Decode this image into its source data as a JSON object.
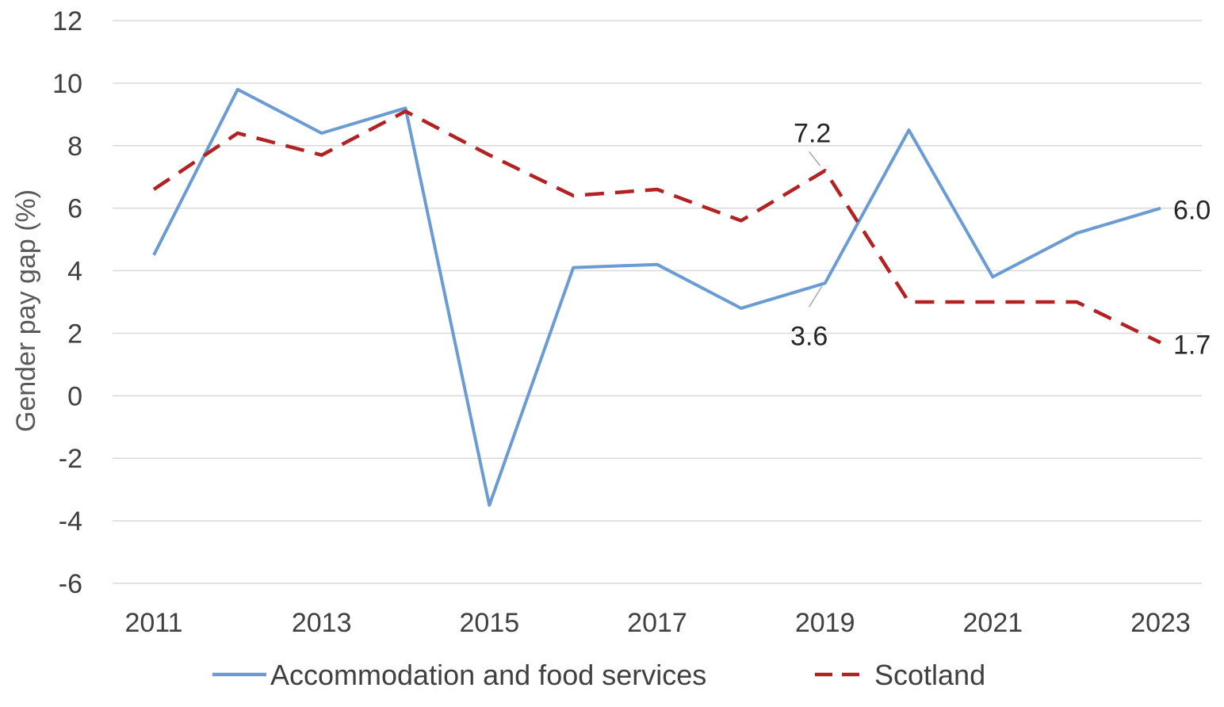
{
  "chart_data": {
    "type": "line",
    "title": "",
    "xlabel": "",
    "ylabel": "Gender pay gap (%)",
    "ylim": [
      -6,
      12
    ],
    "y_ticks": [
      12,
      10,
      8,
      6,
      4,
      2,
      0,
      -2,
      -4,
      -6
    ],
    "x": [
      2011,
      2012,
      2013,
      2014,
      2015,
      2016,
      2017,
      2018,
      2019,
      2020,
      2021,
      2022,
      2023
    ],
    "x_tick_labels": [
      "2011",
      "2013",
      "2015",
      "2017",
      "2019",
      "2021",
      "2023"
    ],
    "grid": "horizontal",
    "legend_position": "bottom",
    "series": [
      {
        "name": "Accommodation and food services",
        "color": "#6a9bd3",
        "style": "solid",
        "values": [
          4.5,
          9.8,
          8.4,
          9.2,
          -3.5,
          4.1,
          4.2,
          2.8,
          3.6,
          8.5,
          3.8,
          5.2,
          6.0
        ]
      },
      {
        "name": "Scotland",
        "color": "#b22222",
        "style": "dashed",
        "values": [
          6.6,
          8.4,
          7.7,
          9.1,
          7.7,
          6.4,
          6.6,
          5.6,
          7.2,
          3.0,
          3.0,
          3.0,
          1.7
        ]
      }
    ],
    "annotations": [
      {
        "series": 1,
        "index": 8,
        "text": "7.2",
        "placement": "above-callout"
      },
      {
        "series": 0,
        "index": 8,
        "text": "3.6",
        "placement": "below-callout"
      },
      {
        "series": 0,
        "index": 12,
        "text": "6.0",
        "placement": "right"
      },
      {
        "series": 1,
        "index": 12,
        "text": "1.7",
        "placement": "right"
      }
    ]
  }
}
